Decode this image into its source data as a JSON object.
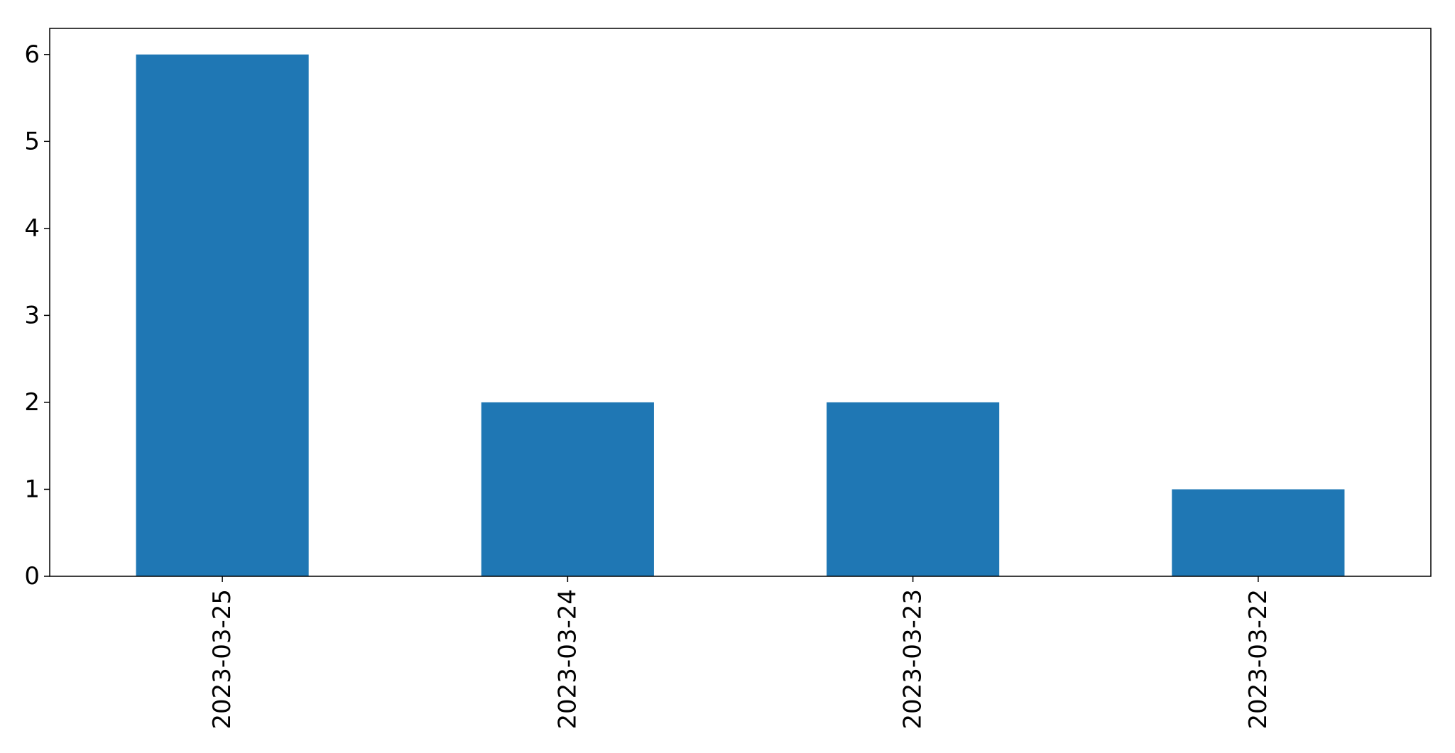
{
  "chart_data": {
    "type": "bar",
    "categories": [
      "2023-03-25",
      "2023-03-24",
      "2023-03-23",
      "2023-03-22"
    ],
    "values": [
      6,
      2,
      2,
      1
    ],
    "title": "",
    "xlabel": "",
    "ylabel": "",
    "ylim": [
      0,
      6.3
    ],
    "yticks": [
      "0",
      "1",
      "2",
      "3",
      "4",
      "5",
      "6"
    ],
    "grid": false,
    "bar_color": "#1f77b4",
    "axis_color": "#000000",
    "background_color": "#ffffff"
  }
}
